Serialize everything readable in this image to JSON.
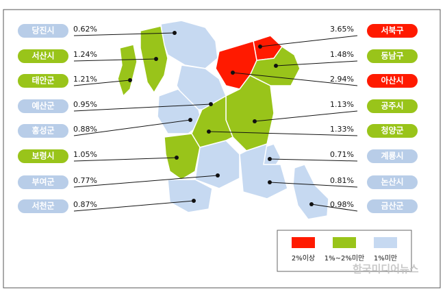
{
  "left_regions": [
    {
      "name": "당진시",
      "value": "0.62%",
      "color": "#c6d9f1"
    },
    {
      "name": "서산시",
      "value": "1.24%",
      "color": "#99c41a"
    },
    {
      "name": "태안군",
      "value": "1.21%",
      "color": "#99c41a"
    },
    {
      "name": "예산군",
      "value": "0.95%",
      "color": "#c6d9f1"
    },
    {
      "name": "홍성군",
      "value": "0.88%",
      "color": "#c6d9f1"
    },
    {
      "name": "보령시",
      "value": "1.05%",
      "color": "#99c41a"
    },
    {
      "name": "부여군",
      "value": "0.77%",
      "color": "#c6d9f1"
    },
    {
      "name": "서천군",
      "value": "0.87%",
      "color": "#c6d9f1"
    }
  ],
  "right_regions": [
    {
      "name": "서북구",
      "value": "3.65%",
      "color": "#ff1a00"
    },
    {
      "name": "동남구",
      "value": "1.48%",
      "color": "#99c41a"
    },
    {
      "name": "아산시",
      "value": "2.94%",
      "color": "#ff1a00"
    },
    {
      "name": "공주시",
      "value": "1.13%",
      "color": "#99c41a"
    },
    {
      "name": "청양군",
      "value": "1.33%",
      "color": "#99c41a"
    },
    {
      "name": "계룡시",
      "value": "0.71%",
      "color": "#c6d9f1"
    },
    {
      "name": "논산시",
      "value": "0.81%",
      "color": "#c6d9f1"
    },
    {
      "name": "금산군",
      "value": "0.98%",
      "color": "#c6d9f1"
    }
  ],
  "legend": [
    {
      "label": "2%이상",
      "color": "#ff1a00"
    },
    {
      "label": "1%~2%미만",
      "color": "#99c41a"
    },
    {
      "label": "1%미만",
      "color": "#c6d9f1"
    }
  ],
  "watermark": "한국미디어뉴스"
}
